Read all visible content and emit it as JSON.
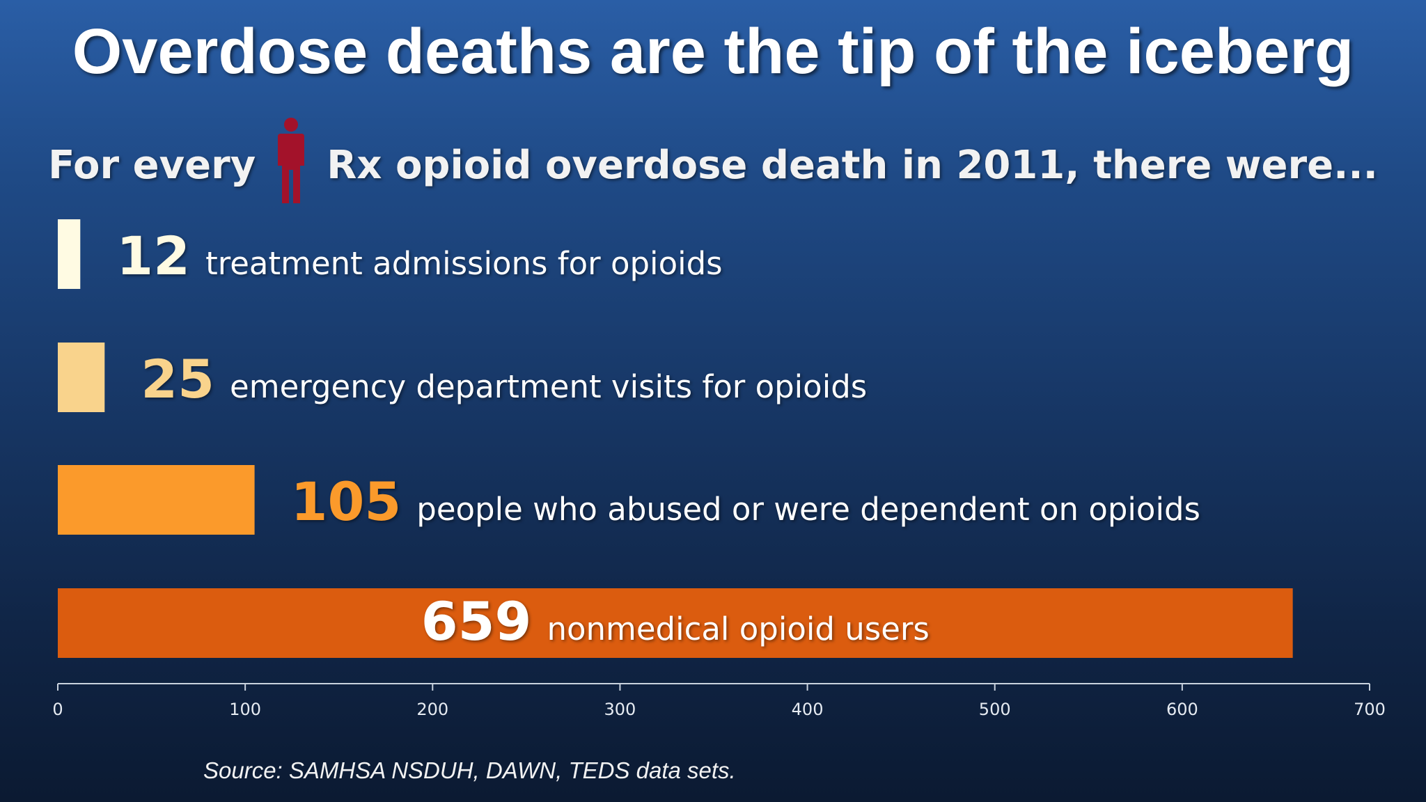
{
  "header": {
    "title": "Overdose deaths are the tip of the iceberg",
    "subtitle_before": "For every",
    "subtitle_after": "Rx opioid overdose death in 2011, there were...",
    "person_icon": "person-icon",
    "person_color": "#a3122a"
  },
  "chart_data": {
    "type": "bar",
    "orientation": "horizontal",
    "categories": [
      "treatment admissions for opioids",
      "emergency department visits for opioids",
      "people who abused or were dependent on opioids",
      "nonmedical opioid users"
    ],
    "values": [
      12,
      25,
      105,
      659
    ],
    "value_labels": [
      "12",
      "25",
      "105",
      "659"
    ],
    "colors": [
      "#fffbe3",
      "#f9d38c",
      "#fb9a2b",
      "#db5c0f"
    ],
    "label_colors": [
      "#fffbe3",
      "#f9d38c",
      "#fb9a2b",
      "#ffffff"
    ],
    "xlim": [
      0,
      700
    ],
    "xticks": [
      "0",
      "100",
      "200",
      "300",
      "400",
      "500",
      "600",
      "700"
    ],
    "grid": false,
    "legend": "none"
  },
  "footer": {
    "source": "Source: SAMHSA NSDUH, DAWN, TEDS data sets."
  }
}
